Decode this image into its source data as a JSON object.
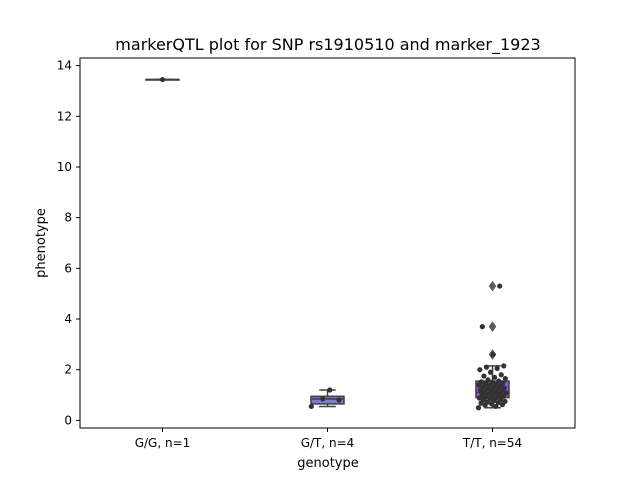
{
  "chart_data": {
    "type": "box",
    "title": "markerQTL plot for SNP rs1910510 and marker_1923",
    "xlabel": "genotype",
    "ylabel": "phenotype",
    "ylim": [
      -0.3,
      14.3
    ],
    "yticks": [
      0,
      2,
      4,
      6,
      8,
      10,
      12,
      14
    ],
    "grid": false,
    "legend": "none",
    "categories": [
      "G/G, n=1",
      "G/T, n=4",
      "T/T, n=54"
    ],
    "boxes": [
      {
        "category": "G/G, n=1",
        "color": "#7b68ee",
        "q1": 13.45,
        "median": 13.45,
        "q3": 13.45,
        "whisker_low": 13.45,
        "whisker_high": 13.45,
        "fliers": [],
        "points": [
          13.45
        ]
      },
      {
        "category": "G/T, n=4",
        "color": "#7b7bd9",
        "q1": 0.65,
        "median": 0.85,
        "q3": 0.95,
        "whisker_low": 0.55,
        "whisker_high": 1.2,
        "fliers": [],
        "points": [
          0.55,
          0.8,
          0.85,
          1.2
        ]
      },
      {
        "category": "T/T, n=54",
        "color": "#9b4fe6",
        "q1": 0.9,
        "median": 1.1,
        "q3": 1.55,
        "whisker_low": 0.5,
        "whisker_high": 2.15,
        "fliers": [
          2.6,
          3.7,
          5.3
        ],
        "points": [
          0.5,
          0.55,
          0.6,
          0.62,
          0.65,
          0.68,
          0.7,
          0.72,
          0.75,
          0.78,
          0.8,
          0.82,
          0.85,
          0.88,
          0.9,
          0.92,
          0.95,
          0.98,
          1.0,
          1.02,
          1.05,
          1.08,
          1.1,
          1.12,
          1.15,
          1.18,
          1.2,
          1.22,
          1.25,
          1.28,
          1.3,
          1.32,
          1.35,
          1.38,
          1.4,
          1.42,
          1.45,
          1.48,
          1.5,
          1.52,
          1.55,
          1.6,
          1.65,
          1.7,
          1.75,
          1.8,
          1.9,
          2.0,
          2.05,
          2.1,
          2.15,
          2.6,
          3.7,
          5.3
        ]
      }
    ],
    "colors": {
      "axis": "#000000",
      "box_edge": "#3f3f3f",
      "point": "#333333",
      "flier": "#5a5a5a"
    }
  }
}
